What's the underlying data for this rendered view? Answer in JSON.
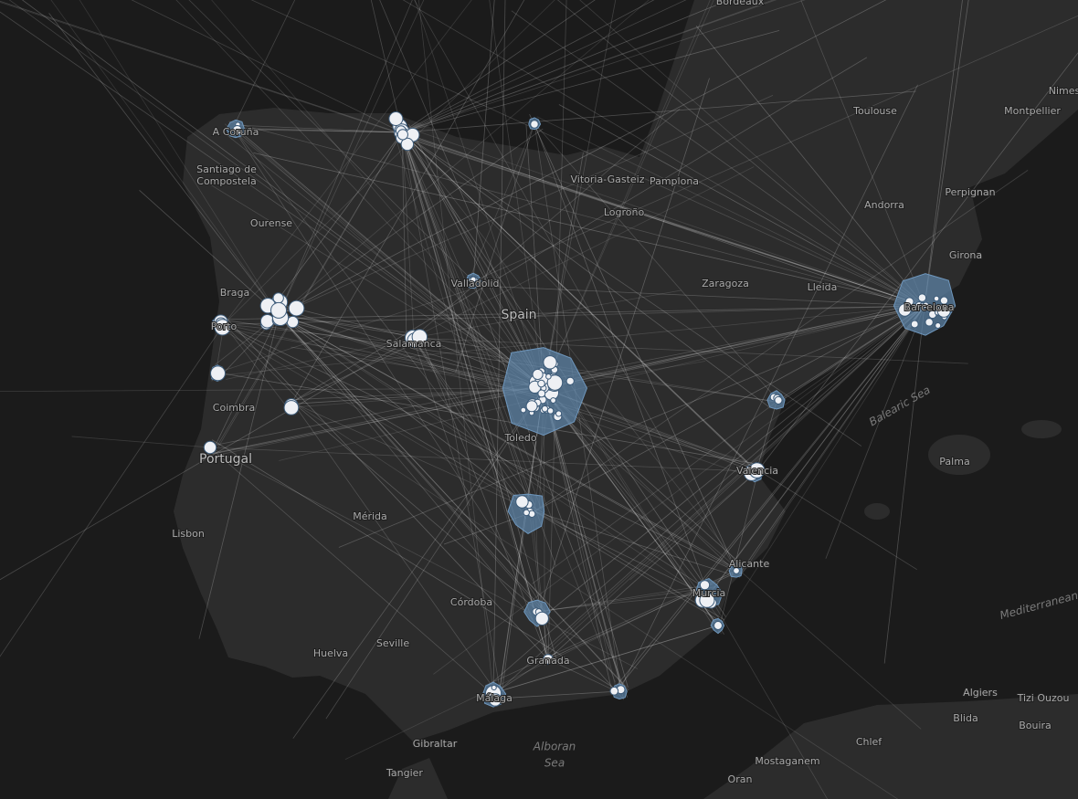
{
  "map": {
    "labels": [
      "Bordeaux",
      "A Coruña",
      "Santiago de",
      "Compostela",
      "Ourense",
      "Braga",
      "Porto",
      "Coimbra",
      "Portugal",
      "Lisbon",
      "Valladolid",
      "Salamanca",
      "Spain",
      "Toledo",
      "Mérida",
      "Córdoba",
      "Seville",
      "Huelva",
      "Granada",
      "Málaga",
      "Gibraltar",
      "Tangier",
      "Alboran",
      "Sea",
      "Vitoria-Gasteiz",
      "Pamplona",
      "Logroño",
      "Zaragoza",
      "Lleida",
      "Andorra",
      "Girona",
      "Barcelona",
      "Toulouse",
      "Montpellier",
      "Nimes",
      "Perpignan",
      "Valencia",
      "Alicante",
      "Murcia",
      "Palma",
      "Balearic Sea",
      "Mediterranean Sea",
      "Algiers",
      "Tizi Ouzou",
      "Blida",
      "Bouira",
      "Chlef",
      "Mostaganem",
      "Oran"
    ]
  }
}
